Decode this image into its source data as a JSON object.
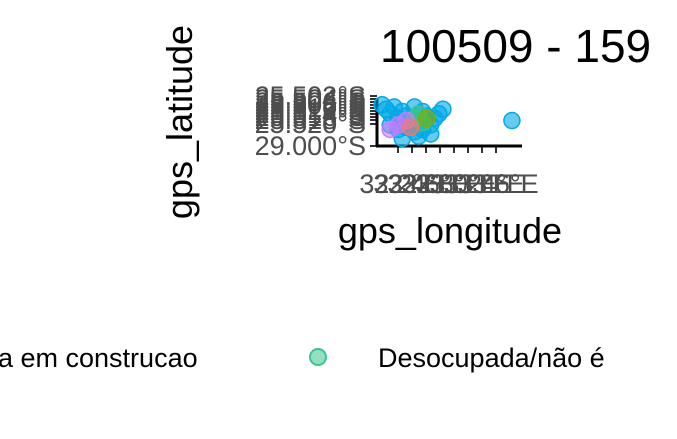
{
  "chart_data": {
    "type": "scatter",
    "title": "100509 - 159",
    "xlabel": "gps_longitude",
    "ylabel": "gps_latitude",
    "x_tick_labels": [
      "32.2°E",
      "32.4°E",
      "32.6°E",
      "32.8°E",
      "33.0°E",
      "33.2°E",
      "33.4°E",
      "33.6°E"
    ],
    "y_tick_labels": [
      "25.502°S",
      "25.504°S",
      "25.506°S",
      "25.508°S",
      "25.510°S",
      "25.512°S",
      "25.514°S",
      "25.516°S",
      "25.518°S",
      "25.520°S",
      "29.000°S"
    ],
    "legend": {
      "position": "bottom",
      "entries": [
        {
          "label": "a em construcao",
          "color": "#00A9E8"
        },
        {
          "label": "Desocupada/não é",
          "color": "#3CC48F"
        }
      ]
    },
    "series": [
      {
        "name": "a em construcao",
        "color": "#00A9E8",
        "points": [
          {
            "x": 32.1,
            "y": -25.503
          },
          {
            "x": 32.15,
            "y": -25.505
          },
          {
            "x": 32.2,
            "y": -25.507
          },
          {
            "x": 32.25,
            "y": -25.504
          },
          {
            "x": 32.3,
            "y": -25.509
          },
          {
            "x": 32.35,
            "y": -25.506
          },
          {
            "x": 32.4,
            "y": -25.508
          },
          {
            "x": 32.45,
            "y": -25.511
          },
          {
            "x": 32.5,
            "y": -25.504
          },
          {
            "x": 32.55,
            "y": -25.51
          },
          {
            "x": 32.6,
            "y": -25.506
          },
          {
            "x": 32.65,
            "y": -25.508
          },
          {
            "x": 32.7,
            "y": -25.512
          },
          {
            "x": 32.75,
            "y": -25.509
          },
          {
            "x": 32.8,
            "y": -25.507
          },
          {
            "x": 32.85,
            "y": -25.505
          },
          {
            "x": 32.2,
            "y": -25.512
          },
          {
            "x": 32.3,
            "y": -25.514
          },
          {
            "x": 32.4,
            "y": -25.513
          },
          {
            "x": 32.5,
            "y": -25.515
          },
          {
            "x": 32.6,
            "y": -25.514
          },
          {
            "x": 32.7,
            "y": -25.516
          },
          {
            "x": 32.35,
            "y": -25.518
          },
          {
            "x": 32.55,
            "y": -25.517
          },
          {
            "x": 33.7,
            "y": -25.51
          }
        ]
      },
      {
        "name": "Desocupada/não é",
        "color": "#3CC48F",
        "points": [
          {
            "x": 32.5,
            "y": -25.509
          },
          {
            "x": 32.6,
            "y": -25.511
          },
          {
            "x": 32.55,
            "y": -25.507
          }
        ]
      },
      {
        "color": "#C77CFF",
        "points": [
          {
            "x": 32.3,
            "y": -25.512
          },
          {
            "x": 32.4,
            "y": -25.51
          },
          {
            "x": 32.2,
            "y": -25.514
          }
        ]
      },
      {
        "color": "#F8766D",
        "points": [
          {
            "x": 32.45,
            "y": -25.513
          }
        ]
      },
      {
        "color": "#7CAE00",
        "points": [
          {
            "x": 32.65,
            "y": -25.509
          }
        ]
      }
    ]
  }
}
